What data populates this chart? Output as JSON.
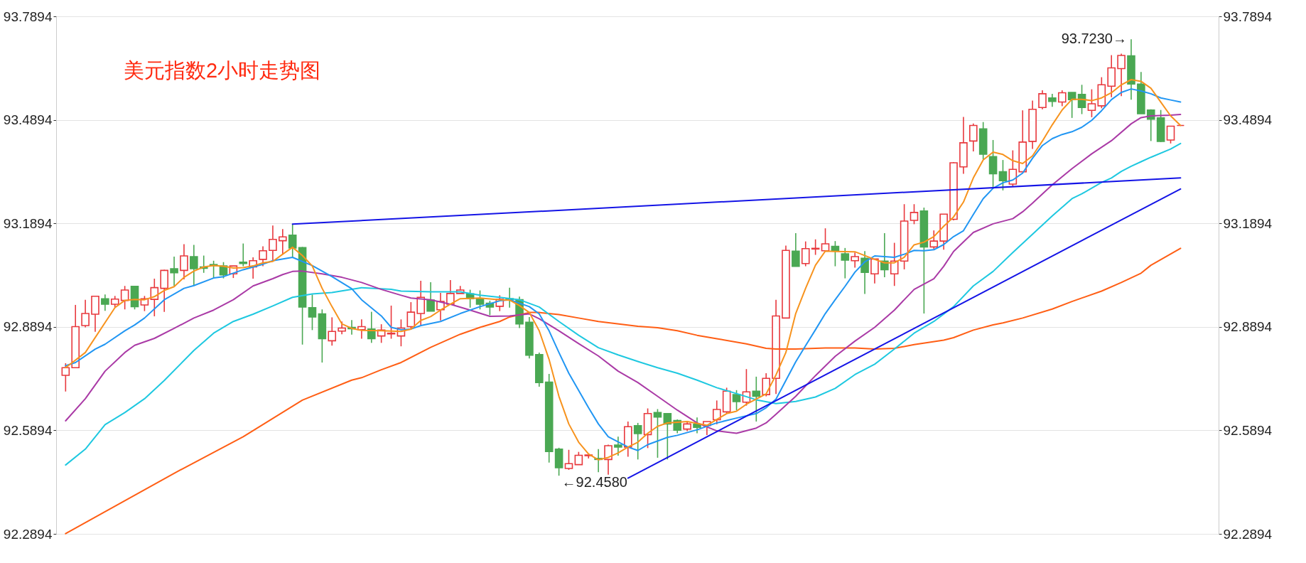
{
  "chart_data": {
    "type": "candlestick",
    "title": "美元指数2小时走势图",
    "categories": [
      null,
      null,
      null,
      null,
      null,
      null,
      null,
      null,
      null,
      null,
      null,
      null,
      null,
      null,
      null,
      null,
      null,
      null,
      null,
      null,
      null,
      null,
      null,
      null,
      null,
      null,
      null,
      null,
      null,
      null,
      null,
      null,
      null,
      null,
      null,
      null,
      null,
      null,
      null,
      null,
      null,
      null,
      null,
      null,
      null,
      null,
      null,
      null,
      null,
      null,
      null,
      null,
      null,
      null,
      null,
      null,
      null,
      null,
      null,
      null,
      null,
      null,
      null,
      null,
      null,
      null,
      null,
      null,
      null,
      null,
      null,
      null,
      null,
      null,
      null,
      null,
      null,
      null,
      null,
      null,
      null,
      null,
      null,
      null,
      null,
      null,
      null,
      null,
      null,
      null,
      null,
      null,
      null,
      null,
      null,
      null,
      null,
      null,
      null,
      null,
      null,
      null,
      null,
      null,
      null,
      null,
      null,
      null,
      null,
      null,
      null,
      null,
      null,
      null
    ],
    "ohlc": [
      [
        92.749,
        92.784,
        92.702,
        92.771
      ],
      [
        92.771,
        92.953,
        92.771,
        92.89
      ],
      [
        92.893,
        92.968,
        92.888,
        92.928
      ],
      [
        92.926,
        92.978,
        92.875,
        92.978
      ],
      [
        92.971,
        92.983,
        92.936,
        92.955
      ],
      [
        92.955,
        92.979,
        92.946,
        92.97
      ],
      [
        92.966,
        93.008,
        92.94,
        92.996
      ],
      [
        93.007,
        93.007,
        92.94,
        92.948
      ],
      [
        92.953,
        92.979,
        92.935,
        92.971
      ],
      [
        92.969,
        93.029,
        92.92,
        93.003
      ],
      [
        93.001,
        93.055,
        92.933,
        93.053
      ],
      [
        93.058,
        93.093,
        93.008,
        93.046
      ],
      [
        93.053,
        93.129,
        93.027,
        93.095
      ],
      [
        93.093,
        93.127,
        93.008,
        93.058
      ],
      [
        93.063,
        93.096,
        93.046,
        93.059
      ],
      [
        93.07,
        93.081,
        93.031,
        93.067
      ],
      [
        93.066,
        93.077,
        93.03,
        93.04
      ],
      [
        93.043,
        93.066,
        93.031,
        93.066
      ],
      [
        93.077,
        93.131,
        93.065,
        93.073
      ],
      [
        93.063,
        93.091,
        93.029,
        93.081
      ],
      [
        93.085,
        93.123,
        93.065,
        93.11
      ],
      [
        93.111,
        93.183,
        93.081,
        93.143
      ],
      [
        93.139,
        93.173,
        93.1,
        93.15
      ],
      [
        93.155,
        93.187,
        93.091,
        93.118
      ],
      [
        93.119,
        93.121,
        92.838,
        92.947
      ],
      [
        92.945,
        92.983,
        92.88,
        92.918
      ],
      [
        92.927,
        92.94,
        92.786,
        92.855
      ],
      [
        92.849,
        92.917,
        92.835,
        92.876
      ],
      [
        92.877,
        92.905,
        92.868,
        92.886
      ],
      [
        92.888,
        92.909,
        92.867,
        92.884
      ],
      [
        92.881,
        92.911,
        92.855,
        92.89
      ],
      [
        92.883,
        92.933,
        92.843,
        92.855
      ],
      [
        92.863,
        92.897,
        92.843,
        92.88
      ],
      [
        92.869,
        92.951,
        92.855,
        92.871
      ],
      [
        92.863,
        92.911,
        92.833,
        92.886
      ],
      [
        92.89,
        92.961,
        92.881,
        92.932
      ],
      [
        92.928,
        93.023,
        92.895,
        92.975
      ],
      [
        92.967,
        93.019,
        92.935,
        92.935
      ],
      [
        92.939,
        92.988,
        92.908,
        92.963
      ],
      [
        92.955,
        93.025,
        92.955,
        92.986
      ],
      [
        92.986,
        93.008,
        92.986,
        92.996
      ],
      [
        92.985,
        92.997,
        92.945,
        92.971
      ],
      [
        92.971,
        92.995,
        92.94,
        92.955
      ],
      [
        92.958,
        92.965,
        92.923,
        92.947
      ],
      [
        92.949,
        92.981,
        92.935,
        92.969
      ],
      [
        92.971,
        93.003,
        92.945,
        92.968
      ],
      [
        92.968,
        92.977,
        92.886,
        92.898
      ],
      [
        92.903,
        92.918,
        92.798,
        92.807
      ],
      [
        92.809,
        92.815,
        92.716,
        92.728
      ],
      [
        92.729,
        92.753,
        92.496,
        92.528
      ],
      [
        92.535,
        92.539,
        92.458,
        92.481
      ],
      [
        92.479,
        92.533,
        92.475,
        92.493
      ],
      [
        92.49,
        92.527,
        92.49,
        92.517
      ],
      [
        92.516,
        92.518,
        92.508,
        92.518
      ],
      [
        92.508,
        92.535,
        92.468,
        92.505
      ],
      [
        92.505,
        92.548,
        92.461,
        92.545
      ],
      [
        92.547,
        92.571,
        92.516,
        92.541
      ],
      [
        92.541,
        92.615,
        92.513,
        92.6
      ],
      [
        92.603,
        92.611,
        92.505,
        92.58
      ],
      [
        92.577,
        92.653,
        92.538,
        92.638
      ],
      [
        92.641,
        92.651,
        92.51,
        92.628
      ],
      [
        92.638,
        92.638,
        92.505,
        92.608
      ],
      [
        92.618,
        92.621,
        92.581,
        92.59
      ],
      [
        92.593,
        92.615,
        92.587,
        92.608
      ],
      [
        92.607,
        92.627,
        92.581,
        92.598
      ],
      [
        92.603,
        92.615,
        92.576,
        92.615
      ],
      [
        92.62,
        92.676,
        92.607,
        92.65
      ],
      [
        92.643,
        92.713,
        92.638,
        92.703
      ],
      [
        92.693,
        92.706,
        92.648,
        92.673
      ],
      [
        92.671,
        92.767,
        92.661,
        92.701
      ],
      [
        92.703,
        92.745,
        92.615,
        92.688
      ],
      [
        92.693,
        92.755,
        92.688,
        92.74
      ],
      [
        92.74,
        92.968,
        92.695,
        92.921
      ],
      [
        92.915,
        93.125,
        92.915,
        93.111
      ],
      [
        93.109,
        93.161,
        93.065,
        93.065
      ],
      [
        93.073,
        93.137,
        93.065,
        93.116
      ],
      [
        93.115,
        93.143,
        93.098,
        93.117
      ],
      [
        93.11,
        93.175,
        93.11,
        93.13
      ],
      [
        93.123,
        93.138,
        93.065,
        93.109
      ],
      [
        93.101,
        93.118,
        93.03,
        93.083
      ],
      [
        93.081,
        93.105,
        93.061,
        93.093
      ],
      [
        93.088,
        93.109,
        92.985,
        93.047
      ],
      [
        93.043,
        93.086,
        93.015,
        93.086
      ],
      [
        93.08,
        93.161,
        93.033,
        93.055
      ],
      [
        93.043,
        93.133,
        93.008,
        93.08
      ],
      [
        93.08,
        93.245,
        93.056,
        93.196
      ],
      [
        93.198,
        93.245,
        93.187,
        93.221
      ],
      [
        93.225,
        93.235,
        92.928,
        93.121
      ],
      [
        93.121,
        93.169,
        93.115,
        93.138
      ],
      [
        93.138,
        93.216,
        93.113,
        93.216
      ],
      [
        93.201,
        93.367,
        93.198,
        93.365
      ],
      [
        93.353,
        93.498,
        93.333,
        93.423
      ],
      [
        93.428,
        93.479,
        93.398,
        93.473
      ],
      [
        93.463,
        93.483,
        93.375,
        93.39
      ],
      [
        93.383,
        93.431,
        93.295,
        93.333
      ],
      [
        93.339,
        93.373,
        93.285,
        93.313
      ],
      [
        93.303,
        93.401,
        93.295,
        93.346
      ],
      [
        93.339,
        93.517,
        93.339,
        93.425
      ],
      [
        93.427,
        93.545,
        93.405,
        93.52
      ],
      [
        93.525,
        93.575,
        93.52,
        93.565
      ],
      [
        93.553,
        93.565,
        93.527,
        93.543
      ],
      [
        93.541,
        93.575,
        93.529,
        93.568
      ],
      [
        93.569,
        93.569,
        93.495,
        93.548
      ],
      [
        93.563,
        93.591,
        93.506,
        93.525
      ],
      [
        93.517,
        93.578,
        93.497,
        93.536
      ],
      [
        93.53,
        93.613,
        93.523,
        93.591
      ],
      [
        93.587,
        93.677,
        93.555,
        93.64
      ],
      [
        93.638,
        93.681,
        93.558,
        93.676
      ],
      [
        93.675,
        93.723,
        93.548,
        93.593
      ],
      [
        93.593,
        93.628,
        93.507,
        93.507
      ],
      [
        93.518,
        93.52,
        93.428,
        93.491
      ],
      [
        93.495,
        93.518,
        93.425,
        93.427
      ],
      [
        93.431,
        93.471,
        93.421,
        93.471
      ],
      [
        93.473,
        93.473,
        93.473,
        93.473
      ]
    ],
    "colors": [
      "#e8383d",
      "#e8383d",
      "#e8383d",
      "#e8383d",
      "#4aa853",
      "#e8383d",
      "#e8383d",
      "#4aa853",
      "#e8383d",
      "#e8383d",
      "#e8383d",
      "#4aa853",
      "#e8383d",
      "#4aa853",
      "#4aa853",
      "#4aa853",
      "#4aa853",
      "#e8383d",
      "#4aa853",
      "#e8383d",
      "#e8383d",
      "#e8383d",
      "#e8383d",
      "#4aa853",
      "#4aa853",
      "#4aa853",
      "#4aa853",
      "#e8383d",
      "#e8383d",
      "#4aa853",
      "#e8383d",
      "#4aa853",
      "#e8383d",
      "#e8383d",
      "#e8383d",
      "#e8383d",
      "#e8383d",
      "#4aa853",
      "#e8383d",
      "#e8383d",
      "#e8383d",
      "#4aa853",
      "#4aa853",
      "#4aa853",
      "#e8383d",
      "#4aa853",
      "#4aa853",
      "#4aa853",
      "#4aa853",
      "#4aa853",
      "#4aa853",
      "#e8383d",
      "#e8383d",
      "#e8383d",
      "#4aa853",
      "#e8383d",
      "#4aa853",
      "#e8383d",
      "#4aa853",
      "#e8383d",
      "#4aa853",
      "#4aa853",
      "#4aa853",
      "#e8383d",
      "#4aa853",
      "#e8383d",
      "#e8383d",
      "#e8383d",
      "#4aa853",
      "#e8383d",
      "#4aa853",
      "#e8383d",
      "#e8383d",
      "#e8383d",
      "#4aa853",
      "#e8383d",
      "#e8383d",
      "#e8383d",
      "#4aa853",
      "#4aa853",
      "#e8383d",
      "#4aa853",
      "#e8383d",
      "#4aa853",
      "#e8383d",
      "#e8383d",
      "#e8383d",
      "#4aa853",
      "#e8383d",
      "#e8383d",
      "#e8383d",
      "#e8383d",
      "#e8383d",
      "#4aa853",
      "#4aa853",
      "#4aa853",
      "#e8383d",
      "#e8383d",
      "#e8383d",
      "#e8383d",
      "#4aa853",
      "#e8383d",
      "#4aa853",
      "#4aa853",
      "#e8383d",
      "#e8383d",
      "#e8383d",
      "#e8383d",
      "#4aa853",
      "#4aa853",
      "#4aa853",
      "#4aa853",
      "#e8383d",
      "#e8383d"
    ],
    "series": [
      {
        "type": "line",
        "color": "#ff5e14",
        "values": [
          92.29,
          null,
          null,
          null,
          null,
          null,
          null,
          null,
          null,
          null,
          null,
          92.465,
          null,
          null,
          null,
          null,
          null,
          null,
          92.571,
          null,
          null,
          null,
          null,
          null,
          92.677,
          null,
          null,
          null,
          null,
          92.735,
          92.742,
          null,
          92.765,
          null,
          92.786,
          null,
          null,
          92.83,
          null,
          null,
          92.868,
          null,
          92.888,
          null,
          92.905,
          92.918,
          null,
          92.931,
          92.931,
          null,
          92.925,
          null,
          92.915,
          null,
          92.905,
          null,
          null,
          null,
          92.891,
          null,
          92.887,
          null,
          92.878,
          null,
          92.865,
          null,
          92.855,
          null,
          null,
          92.84,
          null,
          92.827,
          92.825,
          null,
          92.825,
          null,
          null,
          92.828,
          null,
          null,
          92.828,
          null,
          92.825,
          null,
          92.827,
          null,
          92.838,
          null,
          null,
          92.851,
          92.858,
          null,
          92.88,
          null,
          92.895,
          92.901,
          null,
          92.915,
          null,
          null,
          92.941,
          null,
          92.963,
          null,
          null,
          92.993,
          null,
          93.018,
          null,
          93.045,
          93.068,
          null,
          null,
          93.117
        ]
      },
      {
        "type": "line",
        "color": "#1ec8e0",
        "values": [
          92.489,
          null,
          92.535,
          null,
          92.606,
          null,
          92.641,
          null,
          92.681,
          null,
          92.734,
          null,
          null,
          92.821,
          null,
          92.871,
          null,
          92.905,
          null,
          92.926,
          null,
          92.95,
          null,
          92.975,
          null,
          92.985,
          null,
          92.989,
          null,
          null,
          93.003,
          null,
          null,
          92.998,
          92.993,
          null,
          null,
          92.991,
          null,
          null,
          92.991,
          null,
          92.981,
          null,
          92.975,
          null,
          92.968,
          null,
          92.947,
          null,
          92.905,
          null,
          92.865,
          null,
          92.829,
          null,
          92.808,
          null,
          92.789,
          null,
          92.771,
          null,
          92.755,
          null,
          92.735,
          null,
          92.713,
          null,
          92.696,
          null,
          92.678,
          null,
          92.667,
          null,
          92.673,
          null,
          92.686,
          null,
          92.711,
          null,
          92.751,
          null,
          92.781,
          null,
          92.825,
          null,
          92.871,
          null,
          92.905,
          null,
          92.948,
          null,
          93.008,
          null,
          93.05,
          null,
          93.105,
          null,
          93.158,
          null,
          93.211,
          null,
          93.261,
          93.275,
          null,
          93.308,
          93.321,
          93.34,
          93.355,
          93.368,
          93.381,
          null,
          93.405,
          93.421
        ]
      },
      {
        "type": "line",
        "color": "#aa3aa6",
        "values": [
          92.617,
          null,
          92.681,
          null,
          92.761,
          null,
          92.815,
          92.836,
          null,
          92.856,
          null,
          92.885,
          null,
          92.915,
          null,
          92.938,
          null,
          92.968,
          null,
          93.008,
          null,
          93.029,
          93.041,
          93.05,
          93.051,
          null,
          93.043,
          null,
          93.033,
          null,
          93.018,
          null,
          92.998,
          null,
          92.981,
          92.973,
          null,
          92.968,
          null,
          92.955,
          null,
          92.938,
          null,
          92.92,
          null,
          92.921,
          null,
          92.927,
          92.913,
          null,
          92.878,
          null,
          92.841,
          null,
          92.805,
          null,
          92.761,
          null,
          92.728,
          null,
          92.688,
          null,
          92.648,
          null,
          92.611,
          null,
          92.588,
          null,
          92.581,
          null,
          92.596,
          92.611,
          92.636,
          null,
          92.688,
          null,
          92.748,
          null,
          92.804,
          null,
          92.848,
          null,
          92.888,
          null,
          92.938,
          null,
          92.998,
          null,
          93.029,
          93.065,
          93.108,
          null,
          93.163,
          null,
          93.188,
          null,
          93.203,
          93.223,
          93.248,
          null,
          93.301,
          null,
          93.348,
          null,
          93.391,
          null,
          93.429,
          null,
          93.478,
          93.496,
          93.501,
          null,
          93.503,
          93.505
        ]
      },
      {
        "type": "line",
        "color": "#2196f3",
        "values": [
          92.777,
          92.786,
          null,
          92.825,
          92.839,
          null,
          92.878,
          92.895,
          92.915,
          null,
          92.968,
          null,
          93.001,
          93.009,
          null,
          93.031,
          93.035,
          null,
          93.055,
          null,
          93.071,
          93.081,
          null,
          93.091,
          null,
          93.067,
          null,
          93.035,
          null,
          93.0,
          92.968,
          null,
          92.921,
          92.888,
          92.881,
          92.883,
          92.893,
          null,
          92.905,
          null,
          92.928,
          null,
          92.948,
          null,
          92.965,
          92.968,
          null,
          92.948,
          92.927,
          92.878,
          92.815,
          92.755,
          null,
          92.655,
          92.608,
          92.571,
          null,
          92.541,
          92.531,
          92.548,
          null,
          92.569,
          92.575,
          null,
          92.591,
          null,
          92.611,
          null,
          92.625,
          null,
          92.638,
          92.655,
          92.68,
          92.734,
          92.788,
          92.835,
          92.881,
          92.928,
          92.968,
          93.007,
          93.048,
          93.078,
          93.095,
          null,
          93.091,
          93.1,
          93.111,
          93.11,
          93.113,
          93.128,
          93.151,
          93.168,
          93.215,
          93.261,
          93.291,
          93.307,
          93.315,
          93.335,
          93.378,
          93.415,
          93.435,
          93.447,
          93.455,
          93.468,
          93.488,
          93.516,
          93.548,
          93.569,
          93.579,
          93.573,
          93.565,
          93.553,
          93.547,
          93.541
        ]
      },
      {
        "type": "line",
        "color": "#f7931e",
        "values": [
          92.771,
          null,
          92.815,
          null,
          null,
          92.945,
          92.966,
          92.969,
          92.968,
          92.977,
          92.995,
          93.006,
          93.033,
          93.051,
          93.063,
          93.067,
          93.065,
          93.06,
          93.061,
          93.066,
          93.075,
          93.079,
          93.1,
          93.12,
          93.096,
          93.066,
          93.001,
          92.948,
          92.898,
          92.885,
          92.879,
          null,
          92.878,
          null,
          92.876,
          92.883,
          92.908,
          92.919,
          92.938,
          92.955,
          92.971,
          null,
          92.973,
          null,
          92.968,
          92.967,
          92.951,
          92.931,
          92.878,
          92.795,
          92.688,
          92.608,
          92.555,
          92.521,
          92.504,
          92.511,
          92.524,
          92.541,
          92.555,
          92.581,
          92.601,
          92.611,
          null,
          92.615,
          null,
          92.604,
          92.621,
          92.638,
          92.645,
          92.665,
          null,
          92.695,
          92.75,
          92.815,
          92.928,
          93.001,
          93.068,
          93.109,
          93.108,
          null,
          93.107,
          null,
          93.085,
          93.075,
          93.075,
          93.091,
          93.127,
          93.135,
          93.151,
          93.181,
          93.208,
          93.251,
          93.321,
          93.373,
          93.396,
          93.389,
          93.371,
          93.363,
          93.385,
          93.428,
          93.475,
          93.518,
          93.549,
          93.549,
          93.545,
          93.553,
          93.568,
          93.591,
          93.606,
          93.601,
          93.581,
          93.541,
          93.501,
          93.473
        ]
      },
      {
        "type": "line",
        "color": "#1414e6",
        "values": [
          null,
          null,
          null,
          null,
          null,
          null,
          null,
          null,
          null,
          null,
          null,
          null,
          null,
          null,
          null,
          null,
          null,
          null,
          null,
          null,
          null,
          null,
          null,
          93.187,
          null,
          null,
          null,
          null,
          null,
          null,
          null,
          null,
          null,
          null,
          null,
          null,
          null,
          null,
          null,
          null,
          null,
          null,
          null,
          null,
          null,
          null,
          null,
          null,
          null,
          null,
          null,
          null,
          null,
          null,
          null,
          null,
          null,
          null,
          null,
          null,
          null,
          null,
          null,
          null,
          null,
          null,
          null,
          null,
          null,
          null,
          null,
          null,
          null,
          null,
          null,
          null,
          null,
          null,
          null,
          null,
          null,
          null,
          null,
          null,
          null,
          null,
          null,
          null,
          null,
          null,
          null,
          null,
          null,
          null,
          null,
          null,
          null,
          null,
          null,
          null,
          null,
          null,
          null,
          null,
          null,
          null,
          null,
          null,
          null,
          null,
          null,
          null,
          null,
          93.321
        ]
      },
      {
        "type": "line",
        "color": "#1414e6",
        "values": [
          null,
          null,
          null,
          null,
          null,
          null,
          null,
          null,
          null,
          null,
          null,
          null,
          null,
          null,
          null,
          null,
          null,
          null,
          null,
          null,
          null,
          null,
          null,
          null,
          null,
          null,
          null,
          null,
          null,
          null,
          null,
          null,
          null,
          null,
          null,
          null,
          null,
          null,
          null,
          null,
          null,
          null,
          null,
          null,
          null,
          null,
          null,
          null,
          null,
          null,
          null,
          null,
          null,
          null,
          null,
          null,
          null,
          92.451,
          null,
          null,
          null,
          null,
          null,
          null,
          null,
          null,
          null,
          null,
          null,
          null,
          null,
          null,
          null,
          null,
          null,
          null,
          null,
          null,
          null,
          null,
          null,
          null,
          null,
          null,
          null,
          null,
          null,
          null,
          null,
          null,
          null,
          null,
          null,
          null,
          null,
          null,
          null,
          null,
          null,
          null,
          null,
          null,
          null,
          null,
          null,
          null,
          null,
          null,
          null,
          null,
          null,
          null,
          null,
          93.289
        ]
      }
    ],
    "annotations": [
      "93.7230→",
      "←92.4580"
    ],
    "ylim": [
      92.2894,
      93.7894
    ],
    "yticks": [
      92.2894,
      92.5894,
      92.8894,
      93.1894,
      93.4894,
      93.7894
    ],
    "y2lim": [
      92.2894,
      93.7894
    ],
    "y2ticks": [
      92.2894,
      92.5894,
      92.8894,
      93.1894,
      93.4894,
      93.7894
    ],
    "grid": true,
    "tick_labels": "y"
  }
}
